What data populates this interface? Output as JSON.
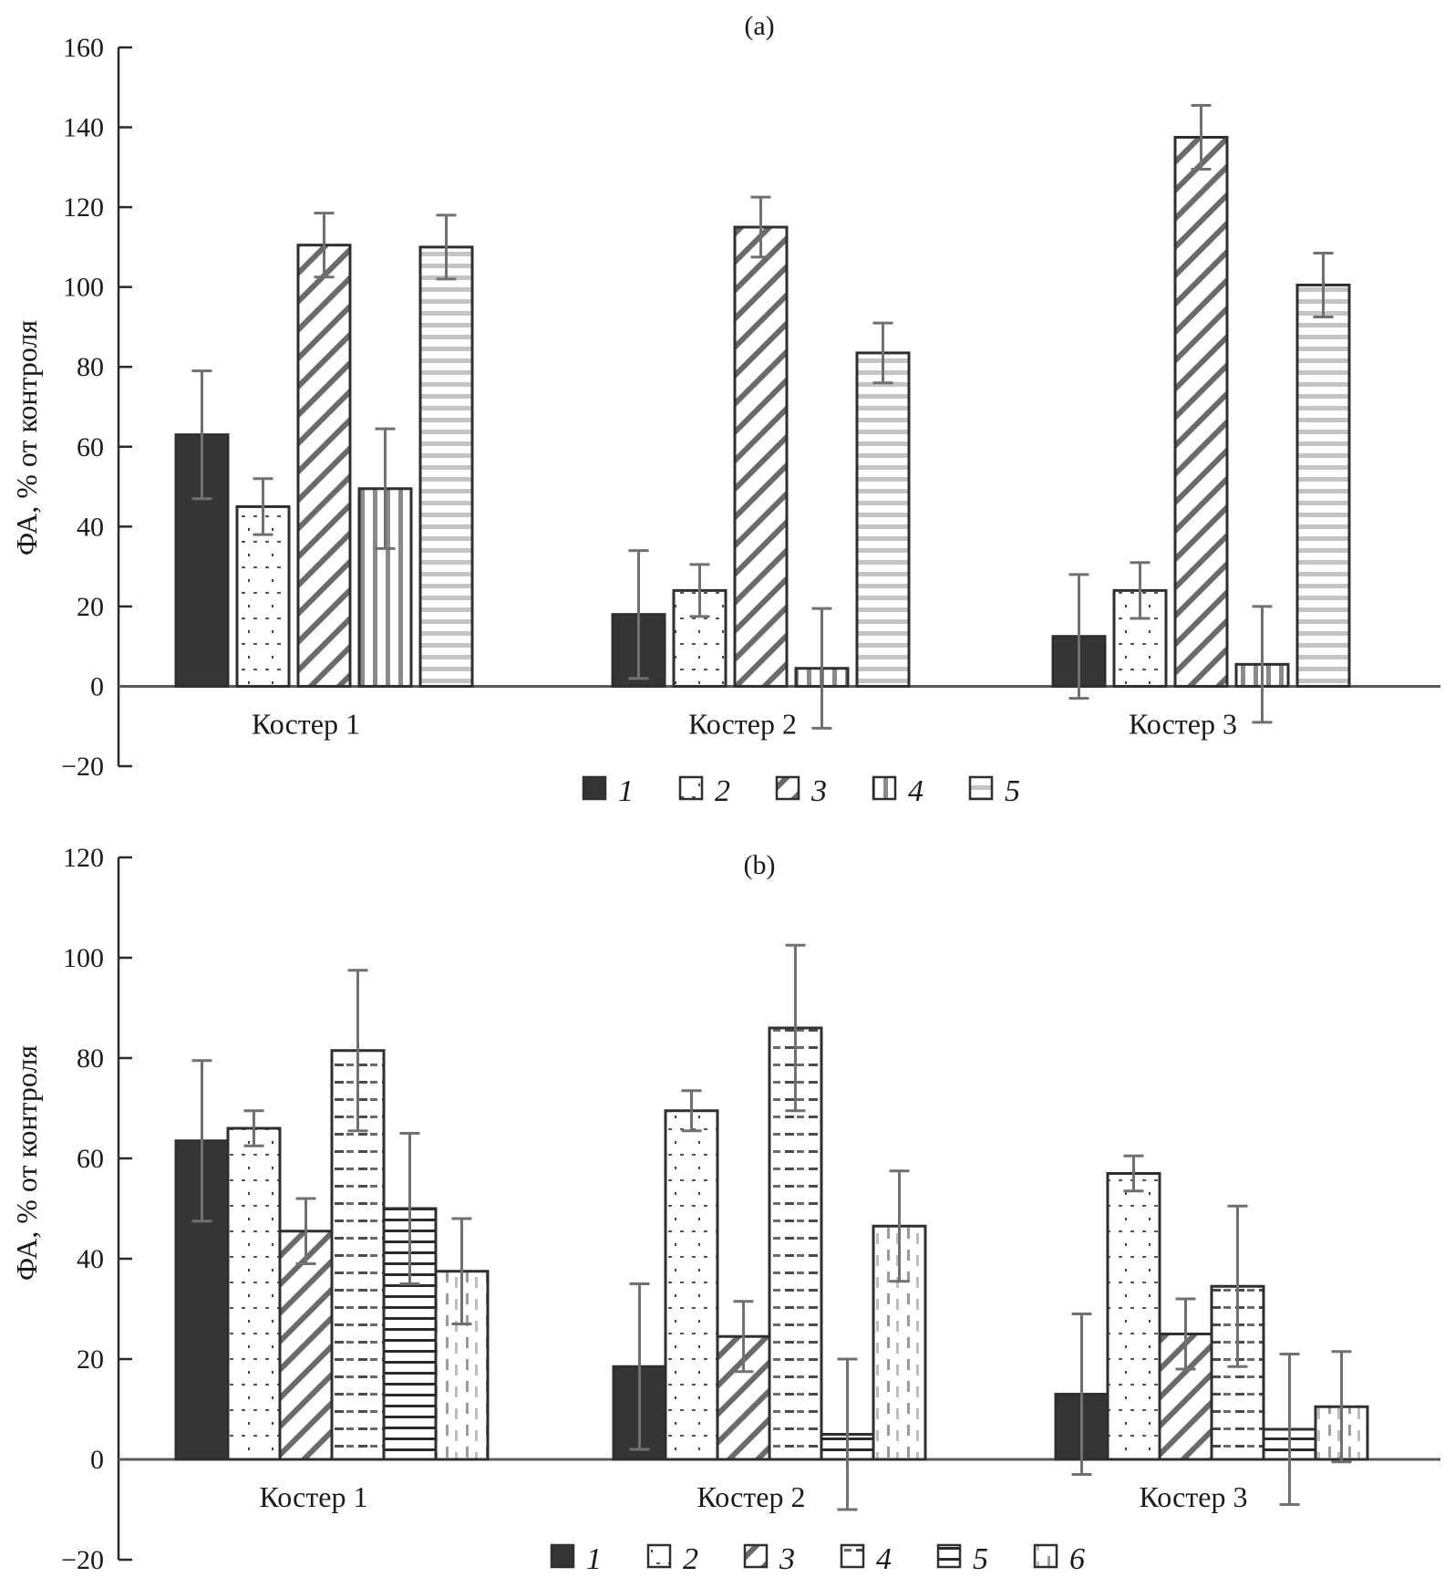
{
  "chart_data": [
    {
      "type": "bar",
      "title": "(a)",
      "xlabel": "",
      "ylabel": "ФА, % от контроля",
      "ylim": [
        -20,
        160
      ],
      "yticks": [
        -20,
        0,
        20,
        40,
        60,
        80,
        100,
        120,
        140,
        160
      ],
      "ytick_labels": [
        "−20",
        "0",
        "20",
        "40",
        "60",
        "80",
        "100",
        "120",
        "140",
        "160"
      ],
      "grid": false,
      "legend_position": "bottom-center",
      "categories": [
        "Костер 1",
        "Костер 2",
        "Костер 3"
      ],
      "series": [
        {
          "name": "1",
          "pattern": "solid",
          "values": [
            63,
            18,
            12.5
          ],
          "errors": [
            16,
            16,
            15.5
          ]
        },
        {
          "name": "2",
          "pattern": "dots",
          "values": [
            45,
            24,
            24
          ],
          "errors": [
            7,
            6.5,
            7
          ]
        },
        {
          "name": "3",
          "pattern": "diagonal",
          "values": [
            110.5,
            115,
            137.5
          ],
          "errors": [
            8,
            7.5,
            8
          ]
        },
        {
          "name": "4",
          "pattern": "vertical",
          "values": [
            49.5,
            4.5,
            5.5
          ],
          "errors": [
            15,
            15,
            14.5
          ]
        },
        {
          "name": "5",
          "pattern": "horizontal-light",
          "values": [
            110,
            83.5,
            100.5
          ],
          "errors": [
            8,
            7.5,
            8
          ]
        }
      ]
    },
    {
      "type": "bar",
      "title": "(b)",
      "xlabel": "",
      "ylabel": "ФА, % от контроля",
      "ylim": [
        -20,
        120
      ],
      "yticks": [
        -20,
        0,
        20,
        40,
        60,
        80,
        100,
        120
      ],
      "ytick_labels": [
        "−20",
        "0",
        "20",
        "40",
        "60",
        "80",
        "100",
        "120"
      ],
      "grid": false,
      "legend_position": "bottom-center",
      "categories": [
        "Костер 1",
        "Костер 2",
        "Костер 3"
      ],
      "series": [
        {
          "name": "1",
          "pattern": "solid",
          "values": [
            63.5,
            18.5,
            13
          ],
          "errors": [
            16,
            16.5,
            16
          ]
        },
        {
          "name": "2",
          "pattern": "dots",
          "values": [
            66,
            69.5,
            57
          ],
          "errors": [
            3.5,
            4,
            3.5
          ]
        },
        {
          "name": "3",
          "pattern": "diagonal",
          "values": [
            45.5,
            24.5,
            25
          ],
          "errors": [
            6.5,
            7,
            7
          ]
        },
        {
          "name": "4",
          "pattern": "dashes",
          "values": [
            81.5,
            86,
            34.5
          ],
          "errors": [
            16,
            16.5,
            16
          ]
        },
        {
          "name": "5",
          "pattern": "horizontal-dark",
          "values": [
            50,
            5,
            6
          ],
          "errors": [
            15,
            15,
            15
          ]
        },
        {
          "name": "6",
          "pattern": "vertical-dashed",
          "values": [
            37.5,
            46.5,
            10.5
          ],
          "errors": [
            10.5,
            11,
            11
          ]
        }
      ]
    }
  ]
}
